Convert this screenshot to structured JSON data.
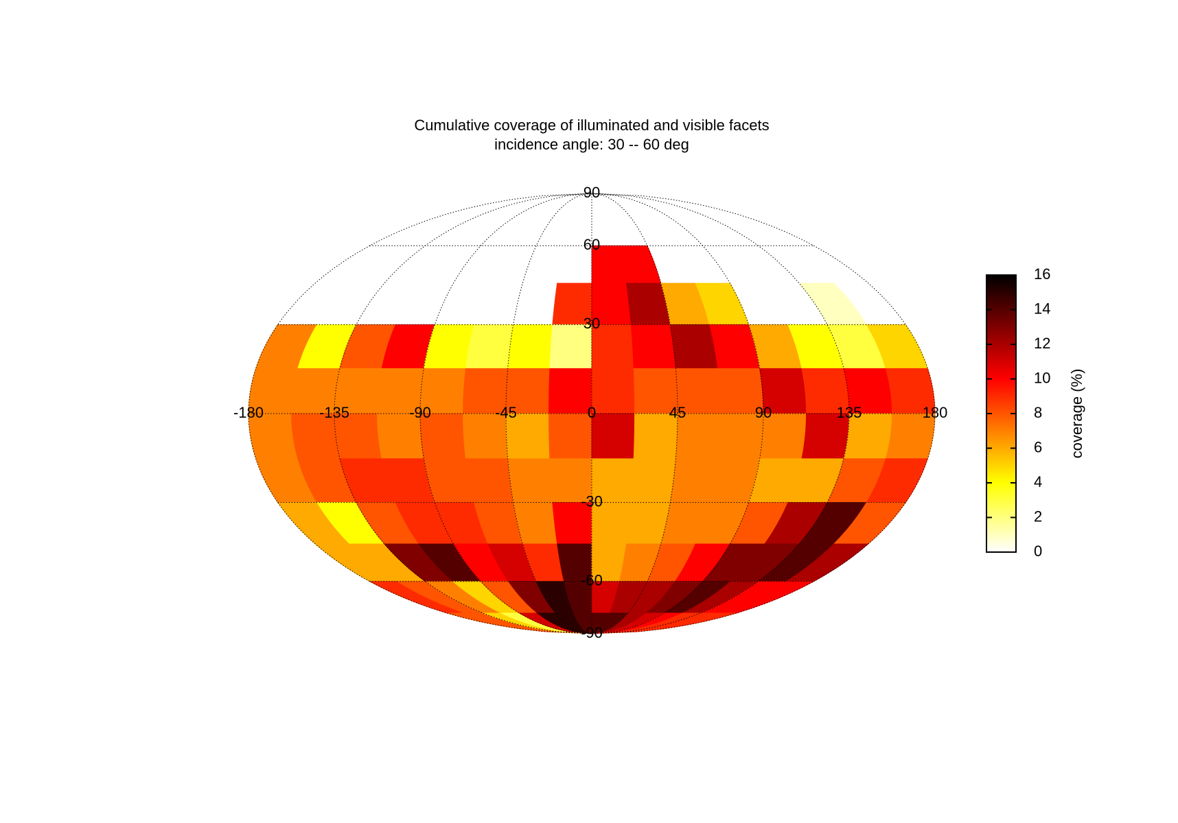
{
  "chart_data": {
    "type": "map-heatmap",
    "projection": "mollweide",
    "title": "Cumulative coverage of illuminated and visible facets",
    "subtitle": "incidence angle: 30 -- 60 deg",
    "xlim": [
      -180,
      180
    ],
    "ylim": [
      -90,
      90
    ],
    "xticks": [
      -180,
      -135,
      -90,
      -45,
      0,
      45,
      90,
      135,
      180
    ],
    "yticks": [
      -90,
      -60,
      -30,
      0,
      30,
      60,
      90
    ],
    "grid": true,
    "lon_edges": [
      -180,
      -157.5,
      -135,
      -112.5,
      -90,
      -67.5,
      -45,
      -22.5,
      0,
      22.5,
      45,
      67.5,
      90,
      112.5,
      135,
      157.5,
      180
    ],
    "lat_edges": [
      90,
      75,
      60,
      45,
      30,
      15,
      0,
      -15,
      -30,
      -45,
      -60,
      -75,
      -90
    ],
    "values": [
      [
        null,
        null,
        null,
        null,
        null,
        null,
        null,
        null,
        null,
        null,
        null,
        null,
        null,
        null,
        null,
        null
      ],
      [
        null,
        null,
        null,
        null,
        null,
        null,
        null,
        null,
        null,
        null,
        null,
        null,
        null,
        null,
        null,
        null
      ],
      [
        null,
        null,
        null,
        null,
        null,
        null,
        null,
        null,
        10,
        10,
        null,
        null,
        null,
        null,
        null,
        null
      ],
      [
        null,
        null,
        null,
        null,
        null,
        null,
        null,
        9,
        10,
        12,
        6,
        5,
        null,
        null,
        1,
        null
      ],
      [
        7,
        4,
        8,
        10,
        4,
        3,
        4,
        2,
        9,
        10,
        12,
        10,
        6,
        4,
        3,
        5
      ],
      [
        7,
        7,
        7,
        7,
        7,
        8,
        8,
        10,
        9,
        8,
        8,
        8,
        11,
        9,
        10,
        9
      ],
      [
        7,
        8,
        8,
        7,
        8,
        7,
        6,
        8,
        11,
        6,
        7,
        7,
        7,
        11,
        6,
        7
      ],
      [
        7,
        8,
        9,
        9,
        8,
        8,
        7,
        7,
        6,
        6,
        7,
        7,
        6,
        6,
        8,
        9
      ],
      [
        6,
        4,
        8,
        9,
        9,
        8,
        7,
        10,
        6,
        6,
        7,
        7,
        8,
        12,
        14,
        8
      ],
      [
        6,
        6,
        13,
        14,
        10,
        11,
        9,
        14,
        6,
        7,
        8,
        10,
        13,
        13,
        14,
        12
      ],
      [
        9,
        8,
        7,
        5,
        8,
        13,
        15,
        14,
        11,
        12,
        12,
        13,
        14,
        12,
        10,
        10
      ],
      [
        8,
        8,
        5,
        3,
        11,
        15,
        15,
        14,
        14,
        14,
        12,
        11,
        10,
        9,
        9,
        9
      ]
    ],
    "colormap": "hot_r",
    "clim": [
      0,
      16
    ],
    "cbar_ticks": [
      0,
      2,
      4,
      6,
      8,
      10,
      12,
      14,
      16
    ],
    "cbar_label": "coverage (%)"
  }
}
